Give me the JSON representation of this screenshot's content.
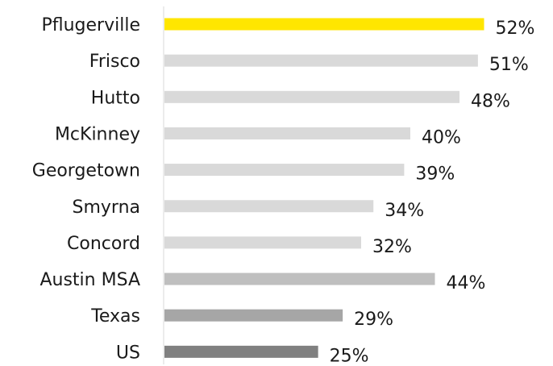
{
  "chart_data": {
    "type": "bar",
    "orientation": "horizontal",
    "categories": [
      "Pflugerville",
      "Frisco",
      "Hutto",
      "McKinney",
      "Georgetown",
      "Smyrna",
      "Concord",
      "Austin MSA",
      "Texas",
      "US"
    ],
    "values": [
      52,
      51,
      48,
      40,
      39,
      34,
      32,
      44,
      29,
      25
    ],
    "value_labels": [
      "52%",
      "51%",
      "48%",
      "40%",
      "39%",
      "34%",
      "32%",
      "44%",
      "29%",
      "25%"
    ],
    "bar_colors": [
      "#FFE600",
      "#D9D9D9",
      "#D9D9D9",
      "#D9D9D9",
      "#D9D9D9",
      "#D9D9D9",
      "#D9D9D9",
      "#BFBFBF",
      "#A6A6A6",
      "#808080"
    ],
    "xlim": [
      0,
      60
    ],
    "grid": false,
    "title": "",
    "xlabel": "",
    "ylabel": ""
  }
}
